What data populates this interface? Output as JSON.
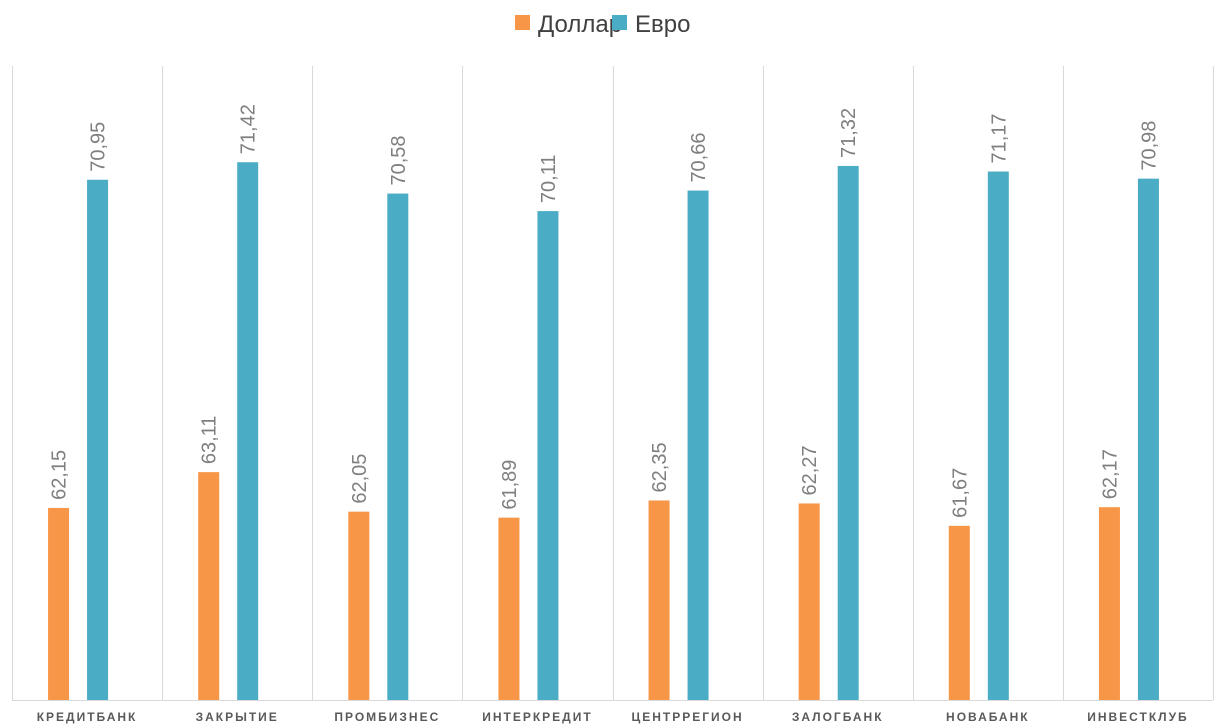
{
  "chart_data": {
    "type": "bar",
    "categories": [
      "КРЕДИТБАНК",
      "ЗАКРЫТИЕ",
      "ПРОМБИЗНЕС",
      "ИНТЕРКРЕДИТ",
      "ЦЕНТРРЕГИОН",
      "ЗАЛОГБАНК",
      "НОВАБАНК",
      "ИНВЕСТКЛУБ"
    ],
    "series": [
      {
        "name": "Доллар",
        "color": "#f79646",
        "values": [
          62.15,
          63.11,
          62.05,
          61.89,
          62.35,
          62.27,
          61.67,
          62.17
        ],
        "labels": [
          "62,15",
          "63,11",
          "62,05",
          "61,89",
          "62,35",
          "62,27",
          "61,67",
          "62,17"
        ]
      },
      {
        "name": "Евро",
        "color": "#4bacc6",
        "values": [
          70.95,
          71.42,
          70.58,
          70.11,
          70.66,
          71.32,
          71.17,
          70.98
        ],
        "labels": [
          "70,95",
          "71,42",
          "70,58",
          "70,11",
          "70,66",
          "71,32",
          "71,17",
          "70,98"
        ]
      }
    ],
    "legend_position": "top-center",
    "grid": "vertical category separators",
    "ylim": [
      57,
      74
    ]
  }
}
